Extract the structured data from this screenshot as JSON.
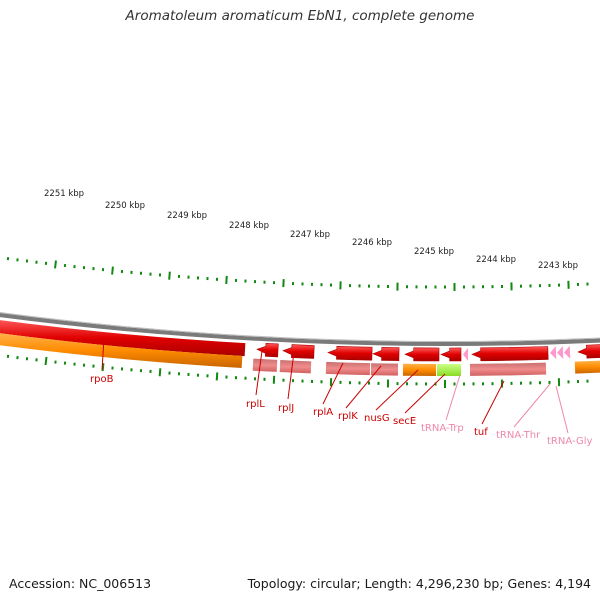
{
  "title": "Aromatoleum aromaticum EbN1, complete genome",
  "footer": {
    "accession": "Accession: NC_006513",
    "stats": "Topology: circular; Length: 4,296,230 bp; Genes: 4,194"
  },
  "colors": {
    "backbone": "#7a7a7a",
    "cds": "#e00000",
    "rna": "#f08080",
    "forward_feature": "#ff8c00",
    "trna": "#ff99cc",
    "highlight": "#99ee33",
    "tick": "#118811",
    "label_gene": "#cc0000",
    "label_trna": "#ee88aa"
  },
  "scale_labels": [
    {
      "text": "2251 kbp",
      "pos": 2251
    },
    {
      "text": "2250 kbp",
      "pos": 2250
    },
    {
      "text": "2249 kbp",
      "pos": 2249
    },
    {
      "text": "2248 kbp",
      "pos": 2248
    },
    {
      "text": "2247 kbp",
      "pos": 2247
    },
    {
      "text": "2246 kbp",
      "pos": 2246
    },
    {
      "text": "2245 kbp",
      "pos": 2245
    },
    {
      "text": "2244 kbp",
      "pos": 2244
    },
    {
      "text": "2243 kbp",
      "pos": 2243
    }
  ],
  "gene_labels": [
    {
      "text": "rpoB",
      "kind": "gene"
    },
    {
      "text": "rplL",
      "kind": "gene"
    },
    {
      "text": "rplJ",
      "kind": "gene"
    },
    {
      "text": "rplA",
      "kind": "gene"
    },
    {
      "text": "rplK",
      "kind": "gene"
    },
    {
      "text": "nusG",
      "kind": "gene"
    },
    {
      "text": "secE",
      "kind": "gene"
    },
    {
      "text": "tRNA-Trp",
      "kind": "trna"
    },
    {
      "text": "tuf",
      "kind": "gene"
    },
    {
      "text": "tRNA-Thr",
      "kind": "trna"
    },
    {
      "text": "tRNA-Gly",
      "kind": "trna"
    }
  ]
}
